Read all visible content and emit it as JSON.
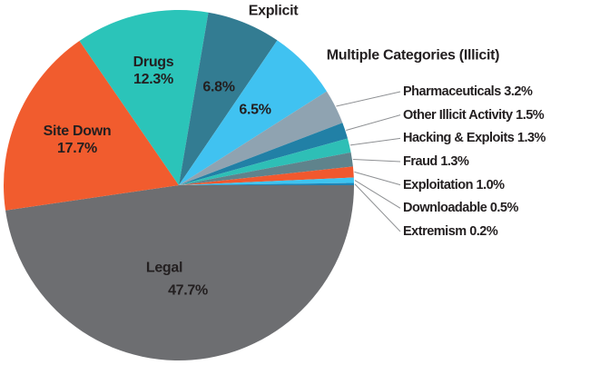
{
  "figure": {
    "background": "#FFFFFF",
    "text_color": "#231F20",
    "leader_line_color": "#8E9093"
  },
  "chart_data": {
    "type": "pie",
    "title": "",
    "unit": "percent",
    "total": 100,
    "layout": {
      "start_angle": "east",
      "direction": "clockwise",
      "legend": "none",
      "callout_labels_position": "right"
    },
    "slices": [
      {
        "id": "legal",
        "label": "Legal",
        "value": 47.7,
        "pct": "47.7%",
        "color": "#6D6E71",
        "label_placement": "inside"
      },
      {
        "id": "site-down",
        "label": "Site Down",
        "value": 17.7,
        "pct": "17.7%",
        "color": "#F15C2E",
        "label_placement": "inside"
      },
      {
        "id": "drugs",
        "label": "Drugs",
        "value": 12.3,
        "pct": "12.3%",
        "color": "#2BC4B9",
        "label_placement": "inside"
      },
      {
        "id": "explicit",
        "label": "Explicit",
        "value": 6.8,
        "pct": "6.8%",
        "color": "#337C92",
        "label_placement": "name-outside-pct-inside"
      },
      {
        "id": "multiple-categories-illicit",
        "label": "Multiple Categories (Illicit)",
        "value": 6.5,
        "pct": "6.5%",
        "color": "#40C2F1",
        "label_placement": "name-outside-pct-inside"
      },
      {
        "id": "pharmaceuticals",
        "label": "Pharmaceuticals",
        "value": 3.2,
        "pct": "3.2%",
        "color": "#8FA3B1",
        "label_placement": "callout"
      },
      {
        "id": "other-illicit-activity",
        "label": "Other Illicit Activity",
        "value": 1.5,
        "pct": "1.5%",
        "color": "#2180A6",
        "label_placement": "callout"
      },
      {
        "id": "hacking-exploits",
        "label": "Hacking & Exploits",
        "value": 1.3,
        "pct": "1.3%",
        "color": "#2EBFB6",
        "label_placement": "callout"
      },
      {
        "id": "fraud",
        "label": "Fraud",
        "value": 1.3,
        "pct": "1.3%",
        "color": "#5F838C",
        "label_placement": "callout"
      },
      {
        "id": "exploitation",
        "label": "Exploitation",
        "value": 1.0,
        "pct": "1.0%",
        "color": "#F1582E",
        "label_placement": "callout"
      },
      {
        "id": "downloadable",
        "label": "Downloadable",
        "value": 0.5,
        "pct": "0.5%",
        "color": "#3DC4F0",
        "label_placement": "callout"
      },
      {
        "id": "extremism",
        "label": "Extremism",
        "value": 0.2,
        "pct": "0.2%",
        "color": "#1F83B5",
        "label_placement": "callout"
      }
    ]
  }
}
